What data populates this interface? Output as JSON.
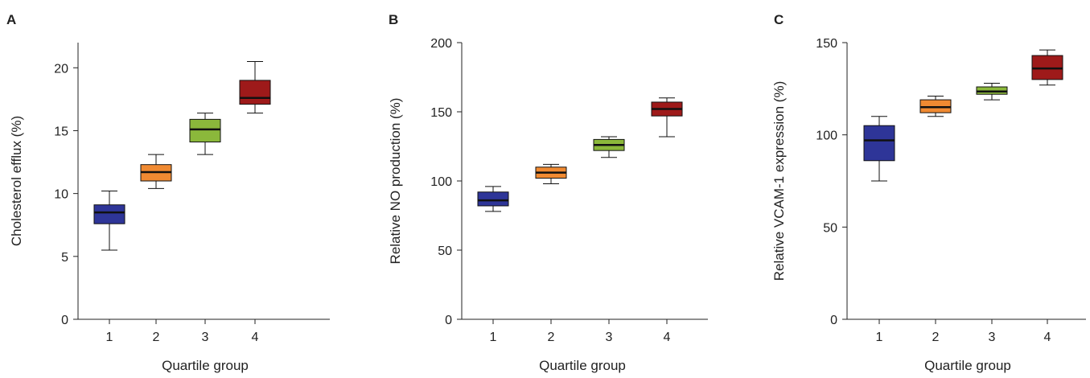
{
  "chart_data": [
    {
      "panel": "A",
      "type": "box",
      "xlabel": "Quartile group",
      "ylabel": "Cholesterol efflux (%)",
      "categories": [
        "1",
        "2",
        "3",
        "4"
      ],
      "ylim": [
        0,
        22
      ],
      "yticks": [
        0,
        5,
        10,
        15,
        20
      ],
      "boxes": [
        {
          "category": "1",
          "min": 5.5,
          "q1": 7.6,
          "median": 8.5,
          "q3": 9.1,
          "max": 10.2,
          "color": "#2e3598"
        },
        {
          "category": "2",
          "min": 10.4,
          "q1": 11.0,
          "median": 11.7,
          "q3": 12.3,
          "max": 13.1,
          "color": "#f08a32"
        },
        {
          "category": "3",
          "min": 13.1,
          "q1": 14.1,
          "median": 15.1,
          "q3": 15.9,
          "max": 16.4,
          "color": "#8bb83b"
        },
        {
          "category": "4",
          "min": 16.4,
          "q1": 17.1,
          "median": 17.6,
          "q3": 19.0,
          "max": 20.5,
          "color": "#9e1a1a"
        }
      ]
    },
    {
      "panel": "B",
      "type": "box",
      "xlabel": "Quartile group",
      "ylabel": "Relative NO production (%)",
      "categories": [
        "1",
        "2",
        "3",
        "4"
      ],
      "ylim": [
        0,
        200
      ],
      "yticks": [
        0,
        50,
        100,
        150,
        200
      ],
      "boxes": [
        {
          "category": "1",
          "min": 78,
          "q1": 82,
          "median": 86,
          "q3": 92,
          "max": 96,
          "color": "#2e3598"
        },
        {
          "category": "2",
          "min": 98,
          "q1": 102,
          "median": 106,
          "q3": 110,
          "max": 112,
          "color": "#f08a32"
        },
        {
          "category": "3",
          "min": 117,
          "q1": 122,
          "median": 126,
          "q3": 130,
          "max": 132,
          "color": "#8bb83b"
        },
        {
          "category": "4",
          "min": 132,
          "q1": 147,
          "median": 152,
          "q3": 157,
          "max": 160,
          "color": "#9e1a1a"
        }
      ]
    },
    {
      "panel": "C",
      "type": "box",
      "xlabel": "Quartile group",
      "ylabel": "Relative VCAM-1 expression (%)",
      "categories": [
        "1",
        "2",
        "3",
        "4"
      ],
      "ylim": [
        0,
        150
      ],
      "yticks": [
        0,
        50,
        100,
        150
      ],
      "boxes": [
        {
          "category": "1",
          "min": 75,
          "q1": 86,
          "median": 97,
          "q3": 105,
          "max": 110,
          "color": "#2e3598"
        },
        {
          "category": "2",
          "min": 110,
          "q1": 112,
          "median": 115,
          "q3": 119,
          "max": 121,
          "color": "#f08a32"
        },
        {
          "category": "3",
          "min": 119,
          "q1": 122,
          "median": 123.5,
          "q3": 126,
          "max": 128,
          "color": "#8bb83b"
        },
        {
          "category": "4",
          "min": 127,
          "q1": 130,
          "median": 136,
          "q3": 143,
          "max": 146,
          "color": "#9e1a1a"
        }
      ]
    }
  ]
}
